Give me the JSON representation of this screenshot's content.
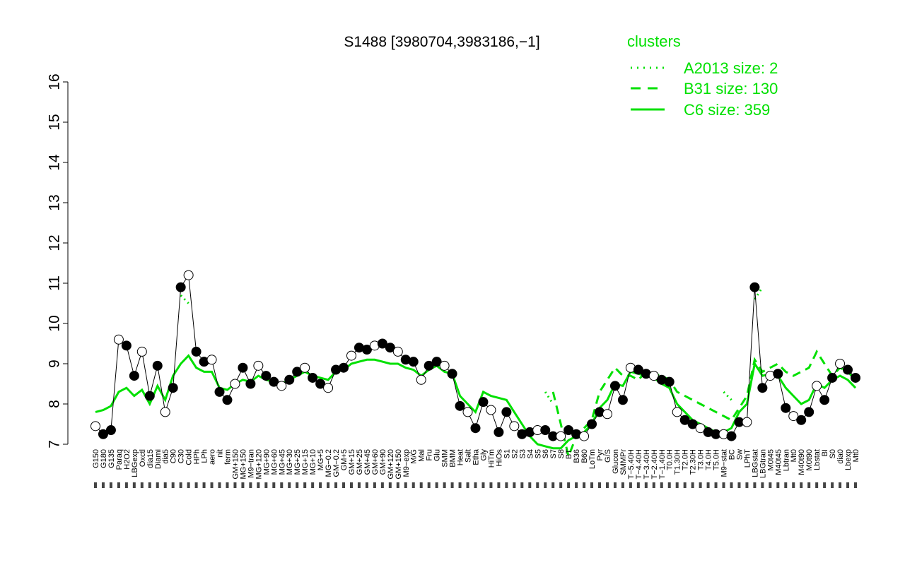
{
  "chart_data": {
    "type": "line",
    "title": "S1488 [3980704,3983186,−1]",
    "xlabel": "",
    "ylabel": "",
    "ylim": [
      7,
      16
    ],
    "yticks": [
      7,
      8,
      9,
      10,
      11,
      12,
      13,
      14,
      15,
      16
    ],
    "grid": false,
    "legend_position": "top-right",
    "legend_title": "clusters",
    "legend": [
      {
        "label": "A2013 size: 2",
        "style": "dotted",
        "color": "#00e000"
      },
      {
        "label": "B31 size: 130",
        "style": "dashed",
        "color": "#00e000"
      },
      {
        "label": "C6 size: 359",
        "style": "solid",
        "color": "#00e000"
      }
    ],
    "x_labels": [
      "G150",
      "G180",
      "G135",
      "Paraq",
      "H2O2",
      "LBGexp",
      "Oxctl",
      "dia15",
      "Diami",
      "dia5",
      "C90",
      "C30",
      "Cold",
      "HPh",
      "LPh",
      "aero",
      "nit",
      "ferm",
      "GM+150",
      "MG+150",
      "M9−tran",
      "MG+120",
      "MG+90",
      "MG+60",
      "MG+45",
      "MG+30",
      "MG+25",
      "MG+15",
      "MG+10",
      "MG+5",
      "MG−0.2",
      "GM−0.2",
      "GM+5",
      "GM+15",
      "GM+25",
      "GM+45",
      "GM+60",
      "GM+90",
      "GM+120",
      "GM+150",
      "M9−exp",
      "M/G",
      "Mal",
      "Fru",
      "Glu",
      "SMM",
      "BMM",
      "Heat",
      "Salt",
      "Etha",
      "Gly",
      "HiTm",
      "HiOs",
      "S1",
      "S2",
      "S3",
      "S4",
      "S5",
      "S6",
      "S7",
      "S8",
      "BT",
      "B36",
      "B60",
      "LoTm",
      "Pyr",
      "G/S",
      "Glucon",
      "SMMPr",
      "T−5.40H",
      "T−4.40H",
      "T−3.40H",
      "T−2.40H",
      "T−1.40H",
      "T0.0H",
      "T1.30H",
      "T2.0H",
      "T2.30H",
      "T3.0H",
      "T4.0H",
      "T5.0H",
      "M9−stat",
      "BC",
      "Sw",
      "LPhT",
      "LBGstat",
      "LBGtran",
      "M0t45",
      "M40t45",
      "Lbtran",
      "Mt0",
      "M40t90",
      "M0t90",
      "Lbstat",
      "BI",
      "S0",
      "dia0",
      "Lbexp",
      "Mt0"
    ],
    "series": [
      {
        "name": "",
        "style": "markers",
        "color": "#000000",
        "values": [
          7.45,
          7.25,
          7.35,
          9.6,
          9.45,
          8.7,
          9.3,
          8.2,
          8.95,
          7.8,
          8.4,
          10.9,
          11.2,
          9.3,
          9.05,
          9.1,
          8.3,
          8.1,
          8.5,
          8.9,
          8.5,
          8.95,
          8.7,
          8.55,
          8.45,
          8.6,
          8.8,
          8.9,
          8.65,
          8.5,
          8.4,
          8.85,
          8.9,
          9.2,
          9.4,
          9.35,
          9.45,
          9.5,
          9.4,
          9.3,
          9.1,
          9.05,
          8.6,
          8.95,
          9.05,
          8.95,
          8.75,
          7.95,
          7.8,
          7.4,
          8.05,
          7.85,
          7.3,
          7.8,
          7.45,
          7.25,
          7.3,
          7.35,
          7.35,
          7.2,
          7.2,
          7.35,
          7.25,
          7.2,
          7.5,
          7.8,
          7.75,
          8.45,
          8.1,
          8.9,
          8.85,
          8.75,
          8.7,
          8.6,
          8.55,
          7.8,
          7.6,
          7.5,
          7.4,
          7.3,
          7.25,
          7.25,
          7.2,
          7.55,
          7.55,
          10.9,
          8.4,
          8.7,
          8.75,
          7.9,
          7.7,
          7.6,
          7.8,
          8.45,
          8.1,
          8.65,
          9.0,
          8.85,
          8.65
        ]
      },
      {
        "name": "",
        "style": "solid",
        "color": "#00e000",
        "values": [
          7.8,
          7.85,
          7.95,
          8.3,
          8.4,
          8.2,
          8.35,
          8.0,
          8.45,
          8.1,
          8.7,
          9.0,
          9.2,
          8.9,
          8.8,
          8.8,
          8.4,
          8.35,
          8.5,
          8.6,
          8.55,
          8.7,
          8.6,
          8.55,
          8.5,
          8.6,
          8.7,
          8.8,
          8.7,
          8.65,
          8.6,
          8.8,
          8.85,
          9.0,
          9.05,
          9.1,
          9.1,
          9.05,
          9.0,
          9.0,
          8.9,
          8.85,
          8.7,
          8.85,
          8.95,
          8.8,
          8.75,
          8.2,
          8.0,
          7.8,
          8.3,
          8.2,
          8.15,
          8.1,
          7.8,
          7.5,
          7.2,
          7.0,
          6.95,
          6.9,
          6.9,
          7.1,
          7.2,
          7.3,
          7.5,
          7.9,
          8.1,
          8.5,
          8.45,
          8.8,
          8.75,
          8.7,
          8.65,
          8.5,
          8.4,
          8.0,
          7.8,
          7.6,
          7.5,
          7.4,
          7.3,
          7.3,
          7.4,
          7.8,
          8.0,
          9.0,
          8.7,
          8.75,
          8.7,
          8.4,
          8.2,
          8.0,
          8.1,
          8.5,
          8.4,
          8.6,
          8.7,
          8.6,
          8.4
        ]
      },
      {
        "name": "",
        "style": "dashed",
        "color": "#00e000",
        "values": [
          null,
          null,
          null,
          null,
          null,
          null,
          null,
          null,
          null,
          null,
          null,
          null,
          null,
          null,
          null,
          null,
          null,
          null,
          null,
          null,
          null,
          null,
          null,
          null,
          null,
          null,
          null,
          null,
          null,
          null,
          null,
          null,
          null,
          null,
          null,
          null,
          null,
          null,
          null,
          null,
          null,
          null,
          null,
          null,
          null,
          null,
          null,
          null,
          null,
          null,
          null,
          null,
          null,
          null,
          null,
          null,
          null,
          null,
          null,
          8.3,
          7.5,
          6.7,
          7.2,
          7.4,
          7.6,
          8.3,
          8.6,
          8.9,
          8.7,
          8.7,
          8.6,
          8.8,
          8.75,
          8.7,
          8.6,
          8.3,
          8.2,
          8.1,
          8.0,
          7.9,
          7.8,
          7.7,
          7.6,
          7.9,
          8.2,
          9.1,
          8.8,
          8.9,
          9.0,
          8.8,
          8.7,
          8.8,
          8.9,
          9.3,
          9.0,
          8.7,
          8.9,
          8.8,
          8.6
        ]
      },
      {
        "name": "",
        "style": "dotted",
        "color": "#00e000",
        "values": [
          null,
          null,
          null,
          null,
          null,
          null,
          null,
          null,
          null,
          null,
          null,
          10.7,
          10.5,
          null,
          null,
          null,
          null,
          null,
          null,
          null,
          null,
          null,
          null,
          null,
          null,
          null,
          null,
          null,
          null,
          null,
          null,
          null,
          null,
          null,
          null,
          null,
          null,
          null,
          null,
          null,
          null,
          null,
          null,
          null,
          null,
          null,
          null,
          null,
          null,
          null,
          null,
          null,
          null,
          null,
          null,
          null,
          null,
          null,
          8.3,
          8.0,
          null,
          null,
          null,
          null,
          null,
          null,
          null,
          null,
          null,
          null,
          null,
          null,
          null,
          null,
          null,
          null,
          null,
          null,
          null,
          null,
          null,
          8.3,
          8.1,
          null,
          null,
          10.6,
          10.9,
          null,
          null,
          null,
          null,
          null,
          null,
          null,
          null,
          null,
          null,
          null,
          null
        ]
      }
    ]
  }
}
